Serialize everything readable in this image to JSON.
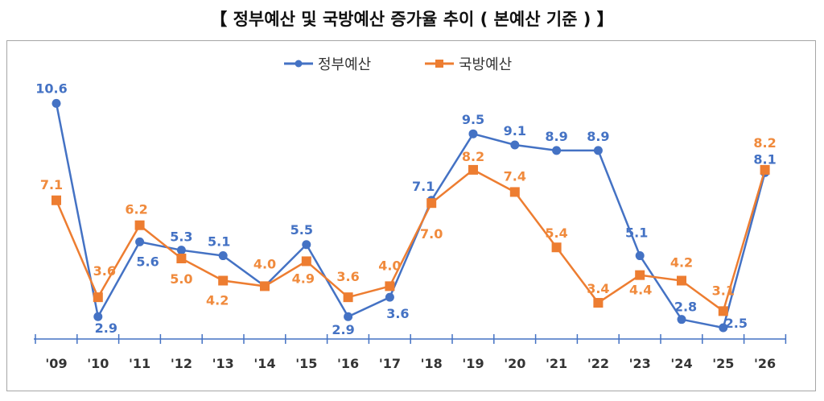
{
  "chart_data": {
    "type": "line",
    "title": "【 정부예산 및 국방예산 증가율 추이 ( 본예산 기준 ) 】",
    "categories": [
      "'09",
      "'10",
      "'11",
      "'12",
      "'13",
      "'14",
      "'15",
      "'16",
      "'17",
      "'18",
      "'19",
      "'20",
      "'21",
      "'22",
      "'23",
      "'24",
      "'25",
      "'26"
    ],
    "series": [
      {
        "name": "정부예산",
        "color": "#4472c4",
        "marker": "circle",
        "values": [
          10.6,
          2.9,
          5.6,
          5.3,
          5.1,
          4.0,
          5.5,
          2.9,
          3.6,
          7.1,
          9.5,
          9.1,
          8.9,
          8.9,
          5.1,
          2.8,
          2.5,
          8.1
        ],
        "labels": [
          "10.6",
          "2.9",
          "5.6",
          "5.3",
          "5.1",
          null,
          "5.5",
          "2.9",
          "3.6",
          "7.1",
          "9.5",
          "9.1",
          "8.9",
          "8.9",
          "5.1",
          "2.8",
          "2.5",
          "8.1"
        ]
      },
      {
        "name": "국방예산",
        "color": "#ed7d31",
        "label_color": "#f08a3c",
        "marker": "square",
        "values": [
          7.1,
          3.6,
          6.2,
          5.0,
          4.2,
          4.0,
          4.9,
          3.6,
          4.0,
          7.0,
          8.2,
          7.4,
          5.4,
          3.4,
          4.4,
          4.2,
          3.1,
          8.2
        ],
        "labels": [
          "7.1",
          "3.6",
          "6.2",
          "5.0",
          "4.2",
          "4.0",
          "4.9",
          "3.6",
          "4.0",
          "7.0",
          "8.2",
          "7.4",
          "5.4",
          "3.4",
          "4.4",
          "4.2",
          "3.1",
          "8.2"
        ]
      }
    ],
    "legend": "top-center",
    "grid": false,
    "ylim": [
      2.5,
      10.6
    ]
  }
}
